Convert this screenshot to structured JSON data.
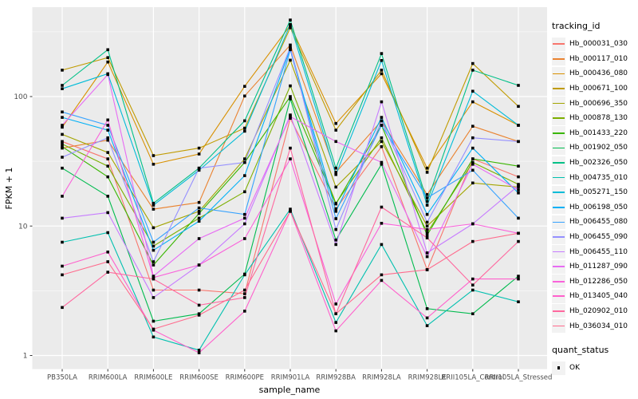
{
  "chart_data": {
    "type": "line",
    "title": "",
    "xlabel": "sample_name",
    "ylabel": "FPKM + 1",
    "yscale": "log10",
    "ylim": [
      0.79,
      490
    ],
    "yticks": [
      1,
      10,
      100
    ],
    "grid": true,
    "panel_bg": "#ebebeb",
    "grid_color": "#ffffff",
    "point_shape": "square",
    "point_color": "#000000",
    "legend": {
      "color_title": "tracking_id",
      "shape_title": "quant_status",
      "shape_label": "OK",
      "position": "right"
    },
    "categories": [
      "PB350LA",
      "RRIM600LA",
      "RRIM600LE",
      "RRIM600SE",
      "RRIM600PE",
      "RRIM901LA",
      "RRIM928BA",
      "RRIM928LA",
      "RRIM928LE",
      "RRII105LA_Control",
      "RRII105LA_Stressed"
    ],
    "series": [
      {
        "name": "Hb_000031_030",
        "color": "#F8766D",
        "values": [
          45,
          33,
          3.2,
          3.2,
          3.0,
          68,
          13.6,
          41,
          4.6,
          33,
          24
        ]
      },
      {
        "name": "Hb_000117_010",
        "color": "#EA8331",
        "values": [
          40,
          46,
          13.5,
          15.2,
          101,
          250,
          26,
          65,
          17.5,
          59,
          45
        ]
      },
      {
        "name": "Hb_000436_080",
        "color": "#D89000",
        "values": [
          58,
          185,
          30,
          36,
          120,
          355,
          62,
          150,
          28,
          91,
          60
        ]
      },
      {
        "name": "Hb_000671_100",
        "color": "#C09B00",
        "values": [
          160,
          200,
          35,
          40,
          57,
          340,
          55,
          160,
          26,
          180,
          84
        ]
      },
      {
        "name": "Hb_000696_350",
        "color": "#A3A500",
        "values": [
          51,
          37,
          9.7,
          13,
          33,
          191,
          20,
          45,
          10,
          21.5,
          20
        ]
      },
      {
        "name": "Hb_000878_130",
        "color": "#7CAE00",
        "values": [
          43,
          29,
          7.0,
          11.5,
          18.4,
          121,
          15,
          48,
          8.9,
          31,
          21
        ]
      },
      {
        "name": "Hb_001433_220",
        "color": "#39B600",
        "values": [
          41,
          24,
          5.0,
          12.5,
          31,
          100,
          14.8,
          60,
          8.5,
          33,
          29
        ]
      },
      {
        "name": "Hb_001902_050",
        "color": "#00BB4E",
        "values": [
          28,
          17,
          1.84,
          2.1,
          4.25,
          96,
          7.8,
          30,
          2.3,
          2.1,
          4.1
        ]
      },
      {
        "name": "Hb_002326_050",
        "color": "#00C087",
        "values": [
          122,
          230,
          15,
          28,
          65,
          390,
          28,
          215,
          15.5,
          160,
          122
        ]
      },
      {
        "name": "Hb_004735_010",
        "color": "#00C0AF",
        "values": [
          7.5,
          8.9,
          1.39,
          1.1,
          4.2,
          13.5,
          1.8,
          7.2,
          1.7,
          3.2,
          2.6
        ]
      },
      {
        "name": "Hb_005271_150",
        "color": "#00BCD8",
        "values": [
          115,
          150,
          14.5,
          27,
          54,
          360,
          25,
          190,
          14.5,
          110,
          60
        ]
      },
      {
        "name": "Hb_006198_050",
        "color": "#00B0F6",
        "values": [
          69,
          55,
          6.5,
          10.9,
          24.5,
          235,
          13,
          69,
          12.3,
          40,
          18
        ]
      },
      {
        "name": "Hb_006455_080",
        "color": "#35A2FF",
        "values": [
          76,
          60,
          7.5,
          13.8,
          12.3,
          230,
          11.4,
          60,
          16.5,
          27,
          11.5
        ]
      },
      {
        "name": "Hb_006455_090",
        "color": "#9590FF",
        "values": [
          34,
          48,
          5.3,
          28,
          31,
          240,
          9.4,
          65,
          10.7,
          48,
          45
        ]
      },
      {
        "name": "Hb_006455_110",
        "color": "#C77CFF",
        "values": [
          11.5,
          12.7,
          2.8,
          5.0,
          10.4,
          72,
          7.2,
          91,
          6.2,
          10.4,
          20.5
        ]
      },
      {
        "name": "Hb_011287_090",
        "color": "#E76BF3",
        "values": [
          60,
          148,
          4.1,
          8.0,
          11.5,
          70,
          45,
          31,
          5.8,
          30,
          19
        ]
      },
      {
        "name": "Hb_012286_050",
        "color": "#FA62DB",
        "values": [
          17,
          66,
          4.0,
          5.0,
          8.0,
          33,
          2.5,
          10.5,
          9.4,
          10.4,
          8.8
        ]
      },
      {
        "name": "Hb_013405_040",
        "color": "#FF61CC",
        "values": [
          4.9,
          6.3,
          1.57,
          1.05,
          2.2,
          13,
          1.55,
          3.8,
          1.95,
          3.9,
          3.9
        ]
      },
      {
        "name": "Hb_020902_010",
        "color": "#FF689F",
        "values": [
          2.35,
          4.4,
          3.9,
          2.45,
          2.8,
          40,
          2.1,
          14,
          8.1,
          3.5,
          7.6
        ]
      },
      {
        "name": "Hb_036034_010",
        "color": "#FF6B8D",
        "values": [
          4.2,
          5.3,
          1.6,
          2.05,
          3.2,
          13,
          2.1,
          4.2,
          4.6,
          7.6,
          8.8
        ]
      }
    ]
  }
}
